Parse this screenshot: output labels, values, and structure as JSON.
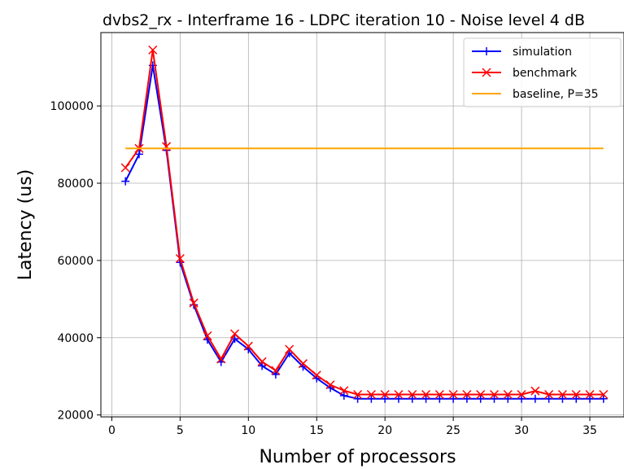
{
  "chart_data": {
    "type": "line",
    "title": "dvbs2_rx - Interframe 16 - LDPC iteration 10 - Noise level 4 dB",
    "xlabel": "Number of processors",
    "ylabel": "Latency (us)",
    "xlim": [
      -0.8,
      37.5
    ],
    "ylim": [
      19500,
      119000
    ],
    "xticks": [
      0,
      5,
      10,
      15,
      20,
      25,
      30,
      35
    ],
    "yticks": [
      20000,
      40000,
      60000,
      80000,
      100000
    ],
    "grid": true,
    "legend_position": "top-right",
    "series": [
      {
        "name": "simulation",
        "color": "#0000ff",
        "marker": "plus",
        "x": [
          1,
          2,
          3,
          4,
          5,
          6,
          7,
          8,
          9,
          10,
          11,
          12,
          13,
          14,
          15,
          16,
          17,
          18,
          19,
          20,
          21,
          22,
          23,
          24,
          25,
          26,
          27,
          28,
          29,
          30,
          31,
          32,
          33,
          34,
          35,
          36
        ],
        "y": [
          80500,
          87500,
          110500,
          88500,
          59500,
          48500,
          39500,
          33700,
          39700,
          37000,
          32700,
          30500,
          36000,
          32500,
          29500,
          27000,
          25000,
          24200,
          24200,
          24200,
          24200,
          24200,
          24200,
          24200,
          24200,
          24200,
          24200,
          24200,
          24200,
          24200,
          24200,
          24200,
          24200,
          24200,
          24200,
          24200
        ]
      },
      {
        "name": "benchmark",
        "color": "#ff0000",
        "marker": "x",
        "x": [
          1,
          2,
          3,
          4,
          5,
          6,
          7,
          8,
          9,
          10,
          11,
          12,
          13,
          14,
          15,
          16,
          17,
          18,
          19,
          20,
          21,
          22,
          23,
          24,
          25,
          26,
          27,
          28,
          29,
          30,
          31,
          32,
          33,
          34,
          35,
          36
        ],
        "y": [
          84000,
          89000,
          114500,
          89500,
          60500,
          49000,
          40500,
          34500,
          41000,
          37800,
          33800,
          31500,
          37000,
          33300,
          30300,
          27800,
          26300,
          25300,
          25300,
          25300,
          25300,
          25300,
          25300,
          25300,
          25300,
          25300,
          25300,
          25300,
          25300,
          25300,
          26200,
          25300,
          25300,
          25300,
          25300,
          25300
        ]
      },
      {
        "name": "baseline, P=35",
        "color": "#ffa500",
        "marker": "none",
        "x": [
          1,
          36
        ],
        "y": [
          89000,
          89000
        ]
      }
    ]
  }
}
